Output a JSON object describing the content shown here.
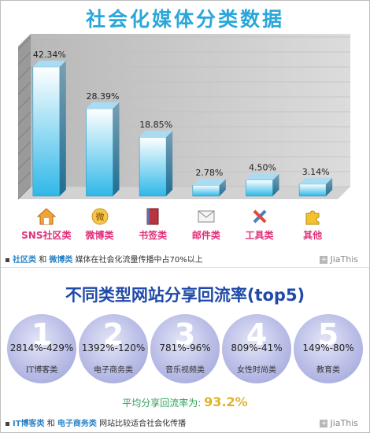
{
  "title": "社会化媒体分类数据",
  "chart_data": {
    "type": "bar",
    "categories": [
      "SNS社区类",
      "微博类",
      "书签类",
      "邮件类",
      "工具类",
      "其他"
    ],
    "values": [
      42.34,
      28.39,
      18.85,
      2.78,
      4.5,
      3.14
    ],
    "value_labels": [
      "42.34%",
      "28.39%",
      "18.85%",
      "2.78%",
      "4.50%",
      "3.14%"
    ],
    "icons": [
      "home-icon",
      "weibo-icon",
      "book-icon",
      "mail-icon",
      "tools-icon",
      "puzzle-icon"
    ],
    "ylim": [
      0,
      50
    ],
    "grid": true,
    "colors": {
      "bar": "#2fb8e8",
      "wall": "#c9c9c9",
      "label": "#e0307a"
    }
  },
  "note1": {
    "part1": "社区类",
    "and": "和",
    "part2": "微博类",
    "rest": "媒体在社会化流量传播中占70%以上"
  },
  "jiathis": "JiaThis",
  "title2": "不同类型网站分享回流率(top5)",
  "share_rates": [
    {
      "rank": "1",
      "range": "2814%-429%",
      "name": "IT博客类"
    },
    {
      "rank": "2",
      "range": "1392%-120%",
      "name": "电子商务类"
    },
    {
      "rank": "3",
      "range": "781%-96%",
      "name": "音乐视频类"
    },
    {
      "rank": "4",
      "range": "809%-41%",
      "name": "女性时尚类"
    },
    {
      "rank": "5",
      "range": "149%-80%",
      "name": "教育类"
    }
  ],
  "avg": {
    "label": "平均分享回流率为:",
    "value": "93.2%"
  },
  "note2": {
    "part1": "IT博客类",
    "and": "和",
    "part2": "电子商务类",
    "rest": "网站比较适合社会化传播"
  }
}
